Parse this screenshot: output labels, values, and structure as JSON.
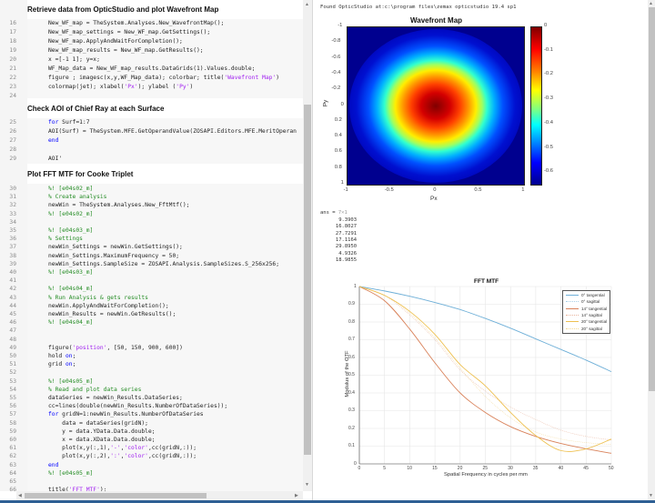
{
  "editor": {
    "sections": [
      {
        "heading": "Retrieve data from OpticStudio and plot Wavefront Map"
      },
      {
        "heading": "Check AOI of Chief Ray at each Surface"
      },
      {
        "heading": "Plot FFT MTF for Cooke Triplet"
      }
    ],
    "lines": [
      {
        "n": "16",
        "text": "New_WF_map = TheSystem.Analyses.New_WavefrontMap();"
      },
      {
        "n": "17",
        "text": "New_WF_map_settings = New_WF_map.GetSettings();"
      },
      {
        "n": "18",
        "text": "New_WF_map.ApplyAndWaitForCompletion();"
      },
      {
        "n": "19",
        "text": "New_WF_map_results = New_WF_map.GetResults();"
      },
      {
        "n": "20",
        "text": "x =[-1 1]; y=x;"
      },
      {
        "n": "21",
        "text": "WF_Map_data = New_WF_map_results.DataGrids(1).Values.double;"
      },
      {
        "n": "22",
        "pre": "figure ; imagesc(x,y,WF_Map_data); colorbar; title(",
        "str": "'Wavefront Map'",
        "post": ")"
      },
      {
        "n": "23",
        "pre": "colormap(jet); xlabel(",
        "str": "'Px'",
        "mid": "); ylabel (",
        "str2": "'Py'",
        "post": ")"
      },
      {
        "n": "24",
        "text": ""
      },
      {
        "n": "25",
        "kw": "for",
        "post": " Surf=1:7"
      },
      {
        "n": "26",
        "text": "AOI(Surf) = TheSystem.MFE.GetOperandValue(ZOSAPI.Editors.MFE.MeritOperan"
      },
      {
        "n": "27",
        "kw": "end",
        "post": ""
      },
      {
        "n": "28",
        "text": ""
      },
      {
        "n": "29",
        "text": "AOI'"
      },
      {
        "n": "30",
        "comment": "%! [e04s02_m]"
      },
      {
        "n": "31",
        "comment": "% Create analysis"
      },
      {
        "n": "32",
        "text": "newWin = TheSystem.Analyses.New_FftMtf();"
      },
      {
        "n": "33",
        "comment": "%! [e04s02_m]"
      },
      {
        "n": "34",
        "text": ""
      },
      {
        "n": "35",
        "comment": "%! [e04s03_m]"
      },
      {
        "n": "36",
        "comment": "% Settings"
      },
      {
        "n": "37",
        "text": "newWin_Settings = newWin.GetSettings();"
      },
      {
        "n": "38",
        "text": "newWin_Settings.MaximumFrequency = 50;"
      },
      {
        "n": "39",
        "text": "newWin_Settings.SampleSize = ZOSAPI.Analysis.SampleSizes.S_256x256;"
      },
      {
        "n": "40",
        "comment": "%! [e04s03_m]"
      },
      {
        "n": "41",
        "text": ""
      },
      {
        "n": "42",
        "comment": "%! [e04s04_m]"
      },
      {
        "n": "43",
        "comment": "% Run Analysis & gets results"
      },
      {
        "n": "44",
        "text": "newWin.ApplyAndWaitForCompletion();"
      },
      {
        "n": "45",
        "text": "newWin_Results = newWin.GetResults();"
      },
      {
        "n": "46",
        "comment": "%! [e04s04_m]"
      },
      {
        "n": "47",
        "text": ""
      },
      {
        "n": "48",
        "text": ""
      },
      {
        "n": "49",
        "pre": "figure(",
        "str": "'position'",
        "post": ", [50, 150, 900, 600])"
      },
      {
        "n": "50",
        "pre": "hold ",
        "kwafter": "on",
        "post": ";"
      },
      {
        "n": "51",
        "pre": "grid ",
        "kwafter": "on",
        "post": ";"
      },
      {
        "n": "52",
        "text": ""
      },
      {
        "n": "53",
        "comment": "%! [e04s05_m]"
      },
      {
        "n": "54",
        "comment": "% Read and plot data series"
      },
      {
        "n": "55",
        "text": "dataSeries = newWin_Results.DataSeries;"
      },
      {
        "n": "56",
        "text": "cc=lines(double(newWin_Results.NumberOfDataSeries));"
      },
      {
        "n": "57",
        "kw": "for",
        "post": " gridN=1:newWin_Results.NumberOfDataSeries"
      },
      {
        "n": "58",
        "text": "    data = dataSeries(gridN);"
      },
      {
        "n": "59",
        "text": "    y = data.YData.Data.double;"
      },
      {
        "n": "60",
        "text": "    x = data.XData.Data.double;"
      },
      {
        "n": "61",
        "pre": "    plot(x,y(:,1),",
        "str": "'-'",
        "mid": ",",
        "str2": "'color'",
        "post": ",cc(gridN,:));"
      },
      {
        "n": "62",
        "pre": "    plot(x,y(:,2),",
        "str": "':'",
        "mid": ",",
        "str2": "'color'",
        "post": ",cc(gridN,:));"
      },
      {
        "n": "63",
        "kw": "end",
        "post": ""
      },
      {
        "n": "64",
        "comment": "%! [e04s05_m]"
      },
      {
        "n": "65",
        "text": ""
      },
      {
        "n": "66",
        "pre": "title(",
        "str": "'FFT MTF'",
        "post": ");"
      }
    ]
  },
  "output": {
    "found_text": "Found OpticStudio at:c:\\program files\\zemax opticstudio 19.4 sp1",
    "ans_label": "ans = ",
    "ans_dims": "7×1",
    "ans_values": [
      "9.3903",
      "16.8027",
      "27.7291",
      "17.1164",
      "29.8950",
      "4.9326",
      "18.9855"
    ]
  },
  "colors": {
    "keyword": "#0000ff",
    "comment": "#228b22",
    "string": "#a020f0",
    "mtf_blue": "#6fb0d8",
    "mtf_red": "#d9825a",
    "mtf_yellow": "#eec050"
  },
  "chart_data": [
    {
      "type": "heatmap",
      "title": "Wavefront Map",
      "xlabel": "Px",
      "ylabel": "Py",
      "xlim": [
        -1,
        1
      ],
      "ylim": [
        -1,
        1
      ],
      "x_ticks": [
        "-1",
        "-0.5",
        "0",
        "0.5",
        "1"
      ],
      "y_ticks": [
        "-1",
        "-0.8",
        "-0.6",
        "-0.4",
        "-0.2",
        "0",
        "0.2",
        "0.4",
        "0.6",
        "0.8",
        "1"
      ],
      "colorbar_ticks": [
        "0",
        "-0.1",
        "-0.2",
        "-0.3",
        "-0.4",
        "-0.5",
        "-0.6"
      ],
      "colormap": "jet",
      "clim": [
        -0.65,
        0
      ],
      "description": "Radially symmetric wavefront; peak 0 at center, decreasing to about -0.65 at pupil edge"
    },
    {
      "type": "line",
      "title": "FFT MTF",
      "xlabel": "Spatial Frequency in cycles per mm",
      "ylabel": "Modulus of the OTF",
      "xlim": [
        0,
        50
      ],
      "ylim": [
        0,
        1
      ],
      "x_ticks": [
        "0",
        "5",
        "10",
        "15",
        "20",
        "25",
        "30",
        "35",
        "40",
        "45",
        "50"
      ],
      "y_ticks": [
        "0",
        "0.1",
        "0.2",
        "0.3",
        "0.4",
        "0.5",
        "0.6",
        "0.7",
        "0.8",
        "0.9",
        "1"
      ],
      "grid": true,
      "legend_position": "northeast",
      "x": [
        0,
        5,
        10,
        15,
        20,
        25,
        30,
        35,
        40,
        45,
        50
      ],
      "series": [
        {
          "name": "0° tangential",
          "style": "solid",
          "color": "#6fb0d8",
          "values": [
            1.0,
            0.975,
            0.945,
            0.91,
            0.87,
            0.82,
            0.765,
            0.705,
            0.645,
            0.585,
            0.52
          ]
        },
        {
          "name": "0° sagittal",
          "style": "dotted",
          "color": "#6fb0d8",
          "values": [
            1.0,
            0.975,
            0.945,
            0.91,
            0.87,
            0.82,
            0.765,
            0.705,
            0.645,
            0.585,
            0.52
          ]
        },
        {
          "name": "14° tangential",
          "style": "solid",
          "color": "#d9825a",
          "values": [
            1.0,
            0.92,
            0.76,
            0.57,
            0.4,
            0.29,
            0.21,
            0.155,
            0.115,
            0.085,
            0.06
          ]
        },
        {
          "name": "14° sagittal",
          "style": "dotted",
          "color": "#d9825a",
          "values": [
            1.0,
            0.95,
            0.84,
            0.7,
            0.53,
            0.41,
            0.32,
            0.25,
            0.19,
            0.155,
            0.135
          ]
        },
        {
          "name": "20° tangential",
          "style": "solid",
          "color": "#eec050",
          "values": [
            1.0,
            0.95,
            0.86,
            0.73,
            0.56,
            0.44,
            0.29,
            0.16,
            0.075,
            0.085,
            0.14
          ]
        },
        {
          "name": "20° sagittal",
          "style": "dotted",
          "color": "#eec050",
          "values": [
            1.0,
            0.95,
            0.85,
            0.71,
            0.54,
            0.38,
            0.26,
            0.18,
            0.14,
            0.12,
            0.11
          ]
        }
      ]
    }
  ]
}
